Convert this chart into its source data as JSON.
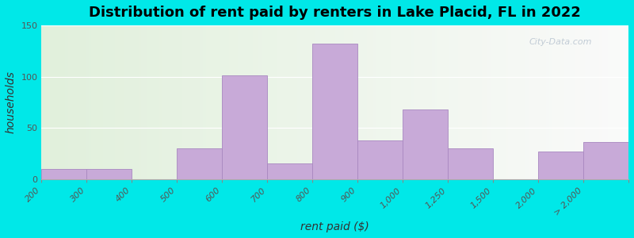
{
  "title": "Distribution of rent paid by renters in Lake Placid, FL in 2022",
  "xlabel": "rent paid ($)",
  "ylabel": "households",
  "tick_labels": [
    "200",
    "300",
    "400",
    "500",
    "600",
    "700",
    "800",
    "900",
    "1,000",
    "1,250",
    "1,500",
    "2,000",
    "> 2,000"
  ],
  "values": [
    10,
    10,
    0,
    30,
    101,
    15,
    132,
    38,
    68,
    30,
    0,
    27,
    36
  ],
  "bar_color": "#c8aad8",
  "bar_edge_color": "#a888c0",
  "background_outer": "#00e8e8",
  "title_fontsize": 13,
  "axis_label_fontsize": 10,
  "tick_fontsize": 8,
  "ylim": [
    0,
    150
  ],
  "yticks": [
    0,
    50,
    100,
    150
  ],
  "watermark": "City-Data.com"
}
